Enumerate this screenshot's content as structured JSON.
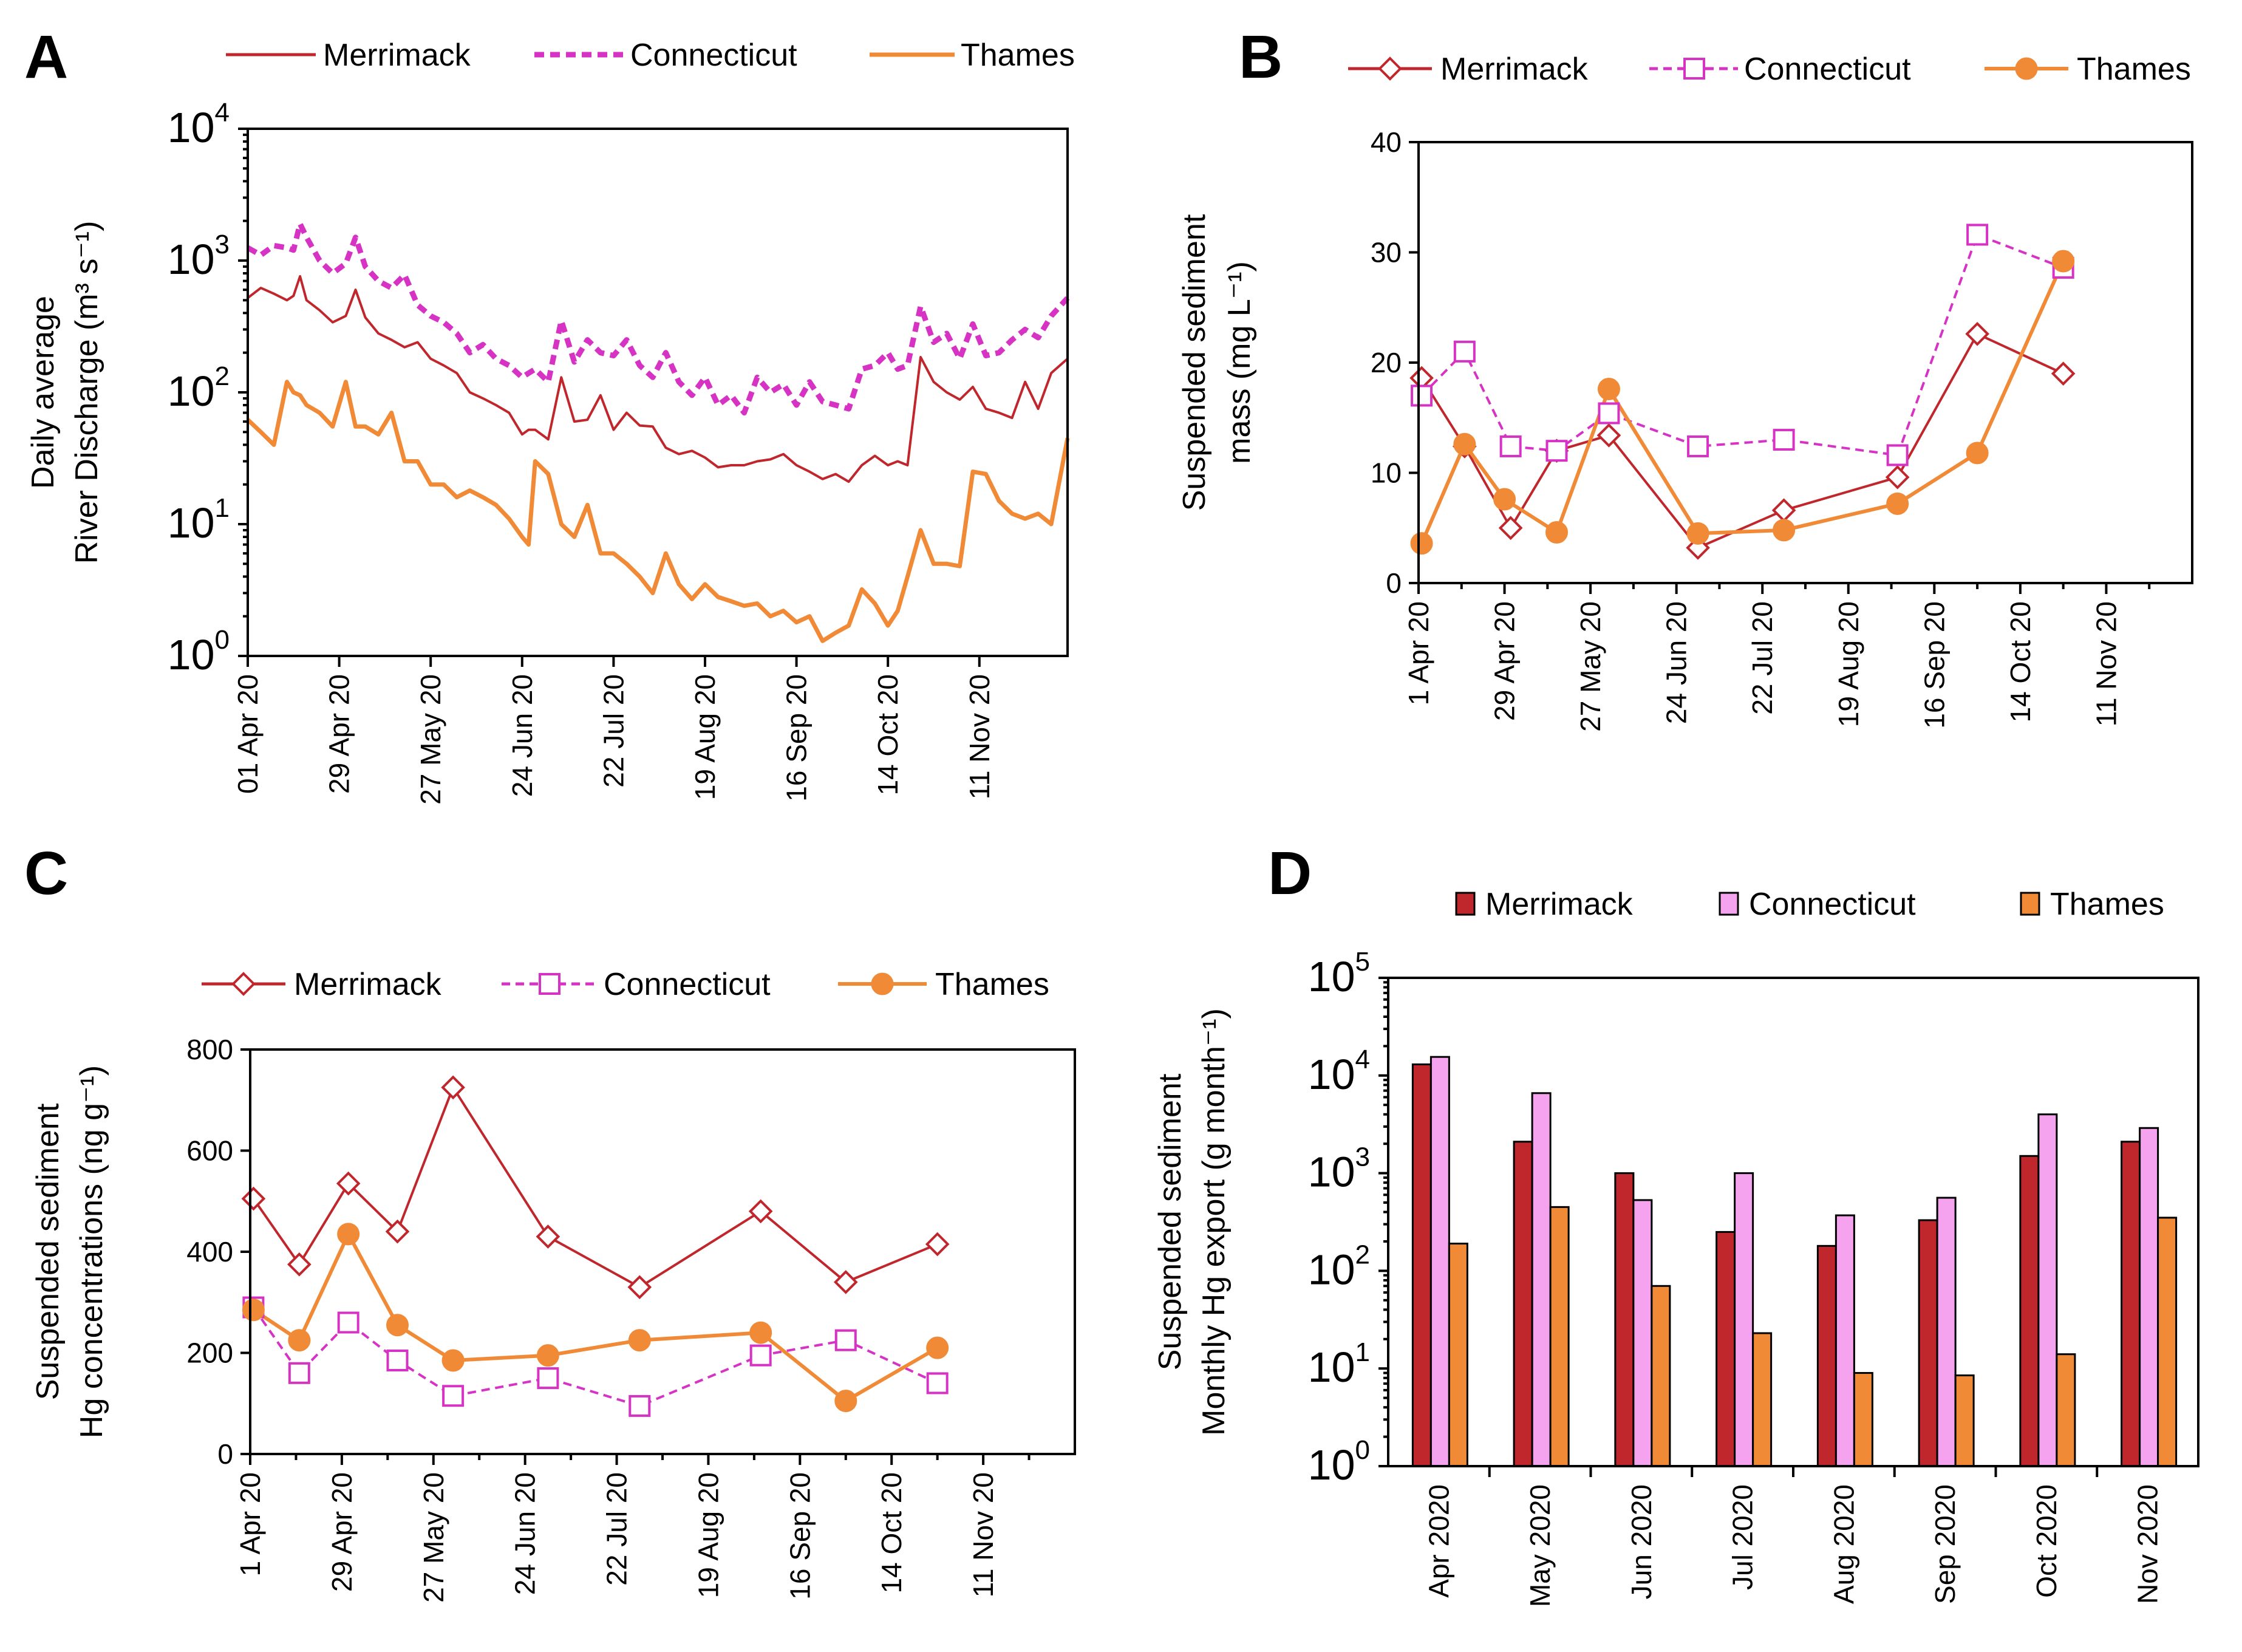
{
  "colors": {
    "merrimack": "#C0272D",
    "connecticut": "#D633C4",
    "connecticut_fill": "#F5A3EE",
    "thames": "#F08A36",
    "axis": "#000000"
  },
  "panels": {
    "A": "A",
    "B": "B",
    "C": "C",
    "D": "D"
  },
  "chart_data": [
    {
      "id": "A",
      "type": "line",
      "title": "",
      "ylabel_lines": [
        "Daily average",
        "River Discharge (m³ s⁻¹)"
      ],
      "yscale": "log",
      "ylim": [
        1,
        10000
      ],
      "y_ticks": [
        {
          "base": "10",
          "exp": "0"
        },
        {
          "base": "10",
          "exp": "1"
        },
        {
          "base": "10",
          "exp": "2"
        },
        {
          "base": "10",
          "exp": "3"
        },
        {
          "base": "10",
          "exp": "4"
        }
      ],
      "x_tick_labels": [
        "01 Apr 20",
        "29 Apr 20",
        "27 May 20",
        "24 Jun 20",
        "22 Jul 20",
        "19 Aug 20",
        "16 Sep 20",
        "14 Oct 20",
        "11 Nov 20"
      ],
      "x_tick_days": [
        0,
        28,
        56,
        84,
        112,
        140,
        168,
        196,
        224
      ],
      "xlim": [
        0,
        251
      ],
      "legend": [
        "Merrimack",
        "Connecticut",
        "Thames"
      ],
      "series": [
        {
          "name": "Merrimack",
          "x": [
            0,
            4,
            8,
            12,
            14,
            16,
            18,
            22,
            26,
            30,
            33,
            36,
            40,
            44,
            48,
            52,
            56,
            60,
            64,
            68,
            72,
            76,
            80,
            84,
            86,
            88,
            92,
            96,
            100,
            104,
            108,
            112,
            116,
            120,
            124,
            128,
            132,
            136,
            140,
            144,
            148,
            152,
            156,
            160,
            164,
            168,
            172,
            176,
            180,
            184,
            188,
            192,
            196,
            199,
            202,
            206,
            210,
            214,
            218,
            222,
            226,
            230,
            234,
            238,
            242,
            246,
            251
          ],
          "y": [
            520,
            620,
            560,
            500,
            540,
            760,
            500,
            420,
            340,
            380,
            600,
            370,
            280,
            250,
            220,
            240,
            180,
            160,
            140,
            100,
            90,
            80,
            70,
            48,
            52,
            52,
            44,
            130,
            60,
            62,
            95,
            52,
            70,
            56,
            55,
            38,
            34,
            36,
            32,
            27,
            28,
            28,
            30,
            31,
            34,
            28,
            25,
            22,
            24,
            21,
            28,
            33,
            28,
            30,
            28,
            185,
            120,
            100,
            88,
            110,
            75,
            70,
            64,
            120,
            75,
            140,
            180
          ]
        },
        {
          "name": "Connecticut",
          "x": [
            0,
            4,
            8,
            12,
            14,
            16,
            18,
            22,
            26,
            30,
            33,
            36,
            40,
            44,
            48,
            52,
            56,
            60,
            64,
            68,
            72,
            76,
            80,
            84,
            86,
            88,
            92,
            96,
            100,
            104,
            108,
            112,
            116,
            120,
            124,
            128,
            132,
            136,
            140,
            144,
            148,
            152,
            156,
            160,
            164,
            168,
            172,
            176,
            180,
            184,
            188,
            192,
            196,
            199,
            202,
            206,
            210,
            214,
            218,
            222,
            226,
            230,
            234,
            238,
            242,
            246,
            251
          ],
          "y": [
            1250,
            1100,
            1300,
            1250,
            1200,
            1900,
            1500,
            1000,
            800,
            950,
            1500,
            900,
            700,
            620,
            780,
            460,
            380,
            340,
            280,
            200,
            230,
            180,
            160,
            130,
            140,
            150,
            120,
            350,
            170,
            250,
            200,
            190,
            250,
            160,
            130,
            200,
            120,
            95,
            130,
            80,
            95,
            70,
            130,
            100,
            115,
            80,
            120,
            85,
            80,
            75,
            150,
            160,
            200,
            150,
            160,
            450,
            240,
            280,
            180,
            330,
            190,
            200,
            250,
            300,
            260,
            380,
            520
          ]
        },
        {
          "name": "Thames",
          "x": [
            0,
            4,
            8,
            12,
            14,
            16,
            18,
            22,
            26,
            30,
            33,
            36,
            40,
            44,
            48,
            52,
            56,
            60,
            64,
            68,
            72,
            76,
            80,
            84,
            86,
            88,
            92,
            96,
            100,
            104,
            108,
            112,
            116,
            120,
            124,
            128,
            132,
            136,
            140,
            144,
            148,
            152,
            156,
            160,
            164,
            168,
            172,
            176,
            180,
            184,
            188,
            192,
            196,
            199,
            202,
            206,
            210,
            214,
            218,
            222,
            226,
            230,
            234,
            238,
            242,
            246,
            251
          ],
          "y": [
            62,
            50,
            40,
            120,
            100,
            95,
            80,
            70,
            55,
            120,
            55,
            55,
            48,
            70,
            30,
            30,
            20,
            20,
            16,
            18,
            16,
            14,
            11,
            8,
            7,
            30,
            24,
            10,
            8,
            14,
            6,
            6,
            5,
            4,
            3,
            6,
            3.5,
            2.7,
            3.5,
            2.8,
            2.6,
            2.4,
            2.5,
            2,
            2.2,
            1.8,
            2,
            1.3,
            1.5,
            1.7,
            3.2,
            2.5,
            1.7,
            2.2,
            4,
            9,
            5,
            5,
            4.8,
            25,
            24,
            15,
            12,
            11,
            12,
            10,
            45
          ]
        }
      ]
    },
    {
      "id": "B",
      "type": "line",
      "title": "",
      "ylabel_lines": [
        "Suspended sediment",
        "mass (mg L⁻¹)"
      ],
      "ylim": [
        0,
        40
      ],
      "y_ticks": [
        "0",
        "10",
        "20",
        "30",
        "40"
      ],
      "x_tick_labels": [
        "1 Apr 20",
        "29 Apr 20",
        "27 May 20",
        "24 Jun 20",
        "22 Jul 20",
        "19 Aug 20",
        "16 Sep 20",
        "14 Oct 20",
        "11 Nov 20"
      ],
      "x_tick_days": [
        0,
        28,
        56,
        84,
        112,
        140,
        168,
        196,
        224
      ],
      "x_minor_days": [
        14,
        42,
        70,
        98,
        126,
        154,
        182,
        210,
        238
      ],
      "xlim": [
        0,
        252
      ],
      "legend": [
        "Merrimack",
        "Connecticut",
        "Thames"
      ],
      "series": [
        {
          "name": "Merrimack",
          "x": [
            1,
            15,
            30,
            45,
            62,
            91,
            119,
            156,
            182,
            210
          ],
          "y": [
            18.6,
            12.4,
            5.0,
            12.0,
            13.4,
            3.2,
            6.6,
            9.6,
            22.6,
            19.0
          ]
        },
        {
          "name": "Connecticut",
          "x": [
            1,
            15,
            30,
            45,
            62,
            91,
            119,
            156,
            182,
            210
          ],
          "y": [
            17.0,
            21.0,
            12.4,
            12.0,
            15.4,
            12.4,
            13.0,
            11.6,
            31.6,
            28.6
          ]
        },
        {
          "name": "Thames",
          "x": [
            1,
            15,
            28,
            45,
            62,
            91,
            119,
            156,
            182,
            210
          ],
          "y": [
            3.6,
            12.6,
            7.6,
            4.6,
            17.6,
            4.5,
            4.8,
            7.2,
            11.8,
            29.2
          ]
        }
      ]
    },
    {
      "id": "C",
      "type": "line",
      "title": "",
      "ylabel_lines": [
        "Suspended sediment",
        "Hg concentrations (ng g⁻¹)"
      ],
      "ylim": [
        0,
        800
      ],
      "y_ticks": [
        "0",
        "200",
        "400",
        "600",
        "800"
      ],
      "x_tick_labels": [
        "1 Apr 20",
        "29 Apr 20",
        "27 May 20",
        "24 Jun 20",
        "22 Jul 20",
        "19 Aug 20",
        "16 Sep 20",
        "14 Oct 20",
        "11 Nov 20"
      ],
      "x_tick_days": [
        0,
        28,
        56,
        84,
        112,
        140,
        168,
        196,
        224
      ],
      "x_minor_days": [
        14,
        42,
        70,
        98,
        126,
        154,
        182,
        210,
        238
      ],
      "xlim": [
        0,
        252
      ],
      "legend": [
        "Merrimack",
        "Connecticut",
        "Thames"
      ],
      "series": [
        {
          "name": "Merrimack",
          "x": [
            1,
            15,
            30,
            45,
            62,
            91,
            119,
            156,
            182,
            210
          ],
          "y": [
            505,
            375,
            535,
            440,
            725,
            430,
            330,
            480,
            340,
            415
          ]
        },
        {
          "name": "Connecticut",
          "x": [
            1,
            15,
            30,
            45,
            62,
            91,
            119,
            156,
            182,
            210
          ],
          "y": [
            290,
            160,
            260,
            185,
            115,
            150,
            95,
            195,
            225,
            140
          ]
        },
        {
          "name": "Thames",
          "x": [
            1,
            15,
            30,
            45,
            62,
            91,
            119,
            156,
            182,
            210
          ],
          "y": [
            285,
            225,
            435,
            255,
            185,
            195,
            225,
            240,
            105,
            210
          ]
        }
      ]
    },
    {
      "id": "D",
      "type": "bar",
      "title": "",
      "ylabel_lines": [
        "Suspended sediment",
        "Monthly Hg export (g month⁻¹)"
      ],
      "yscale": "log",
      "ylim": [
        1,
        100000
      ],
      "y_ticks": [
        {
          "base": "10",
          "exp": "0"
        },
        {
          "base": "10",
          "exp": "1"
        },
        {
          "base": "10",
          "exp": "2"
        },
        {
          "base": "10",
          "exp": "3"
        },
        {
          "base": "10",
          "exp": "4"
        },
        {
          "base": "10",
          "exp": "5"
        }
      ],
      "categories": [
        "Apr 2020",
        "May 2020",
        "Jun 2020",
        "Jul 2020",
        "Aug 2020",
        "Sep 2020",
        "Oct 2020",
        "Nov 2020"
      ],
      "legend": [
        "Merrimack",
        "Connecticut",
        "Thames"
      ],
      "series": [
        {
          "name": "Merrimack",
          "values": [
            13000,
            2100,
            1000,
            250,
            180,
            330,
            1500,
            2100
          ]
        },
        {
          "name": "Connecticut",
          "values": [
            15500,
            6600,
            530,
            1000,
            370,
            560,
            4000,
            2900
          ]
        },
        {
          "name": "Thames",
          "values": [
            190,
            450,
            70,
            23,
            9,
            8.5,
            14,
            350
          ]
        }
      ]
    }
  ]
}
